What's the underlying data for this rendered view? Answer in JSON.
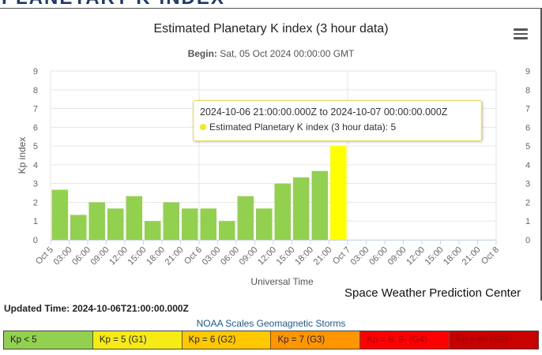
{
  "colors": {
    "bar": "#92d050",
    "bar_highlight": "#ffff00",
    "gridline": "#e6e6e6",
    "axis_text": "#666666"
  },
  "header": {
    "banner_text": "PLANETARY K-INDEX"
  },
  "menu": {
    "icon": "hamburger-menu-icon"
  },
  "chart_data": {
    "type": "bar",
    "title": "Estimated Planetary K index (3 hour data)",
    "subtitle_label": "Begin:",
    "subtitle_value": "Sat, 05 Oct 2024 00:00:00 GMT",
    "xlabel": "Universal Time",
    "ylabel": "Kp index",
    "ylim": [
      0,
      9
    ],
    "yticks": [
      "0",
      "1",
      "2",
      "3",
      "4",
      "5",
      "6",
      "7",
      "8",
      "9"
    ],
    "tick_labels": [
      "Oct 5",
      "03:00",
      "06:00",
      "09:00",
      "12:00",
      "15:00",
      "18:00",
      "21:00",
      "Oct 6",
      "03:00",
      "06:00",
      "09:00",
      "12:00",
      "15:00",
      "18:00",
      "21:00",
      "Oct 7",
      "03:00",
      "06:00",
      "09:00",
      "12:00",
      "15:00",
      "18:00",
      "21:00",
      "Oct 8"
    ],
    "values": [
      2.67,
      1.33,
      2.0,
      1.67,
      2.33,
      1.0,
      2.0,
      1.67,
      1.67,
      1.0,
      2.33,
      1.67,
      3.0,
      3.33,
      3.67,
      5.0
    ],
    "highlight_index": 15,
    "grid": true,
    "tooltip": {
      "time_range": "2024-10-06 21:00:00.000Z to 2024-10-07 00:00:00.000Z",
      "series": "Estimated Planetary K index (3 hour data)",
      "value": "5"
    }
  },
  "credit": "Space Weather Prediction Center",
  "updated": "Updated Time: 2024-10-06T21:00:00.000Z",
  "noaa_scales": {
    "title": "NOAA Scales Geomagnetic Storms",
    "items": [
      {
        "label": "Kp < 5",
        "color": "#92d050"
      },
      {
        "label": "Kp = 5 (G1)",
        "color": "#f6eb14"
      },
      {
        "label": "Kp = 6 (G2)",
        "color": "#ffc800"
      },
      {
        "label": "Kp = 7 (G3)",
        "color": "#ff9600"
      },
      {
        "label": "Kp = 8, 9- (G4)",
        "color": "#ff0000"
      },
      {
        "label": "Kp = 9o (G5)",
        "color": "#c80000"
      }
    ]
  }
}
